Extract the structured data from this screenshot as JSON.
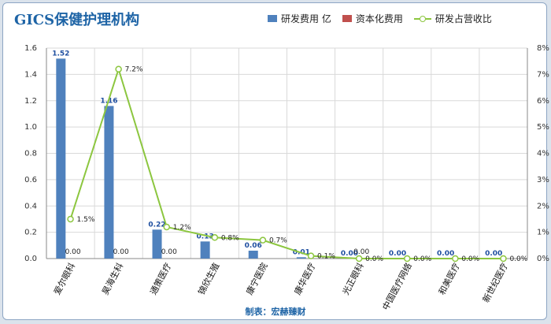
{
  "chart_data": {
    "type": "bar",
    "title": "GICS保健护理机构",
    "categories": [
      "爱尔眼科",
      "昊海生科",
      "通策医疗",
      "锦欣生殖",
      "康宁医院",
      "康华医疗",
      "光正眼科",
      "中国医疗网络",
      "和美医疗",
      "新世纪医疗"
    ],
    "series": [
      {
        "name": "研发费用 亿",
        "axis": "left",
        "kind": "bar",
        "color": "#4f81bd",
        "values": [
          1.52,
          1.16,
          0.22,
          0.13,
          0.06,
          0.01,
          0.0,
          0.0,
          0.0,
          0.0
        ]
      },
      {
        "name": "资本化费用",
        "axis": "left",
        "kind": "bar",
        "color": "#c0504d",
        "values": [
          0.0,
          0.0,
          0.0,
          null,
          null,
          null,
          0.0,
          null,
          null,
          null
        ]
      },
      {
        "name": "研发占营收比",
        "axis": "right",
        "kind": "line",
        "color": "#8cc63f",
        "values": [
          1.5,
          7.2,
          1.2,
          0.8,
          0.7,
          0.1,
          0.0,
          0.0,
          0.0,
          0.0
        ]
      }
    ],
    "bar_labels": [
      "1.52",
      "1.16",
      "0.22",
      "0.13",
      "0.06",
      "0.01",
      "0.00",
      "0.00",
      "0.00",
      "0.00"
    ],
    "cap_labels": [
      "0.00",
      "0.00",
      "0.00",
      "",
      "",
      "",
      "0.00",
      "",
      "",
      ""
    ],
    "pct_labels": [
      "1.5%",
      "7.2%",
      "1.2%",
      "0.8%",
      "0.7%",
      "0.1%",
      "0.0%",
      "0.0%",
      "0.0%",
      "0.0%"
    ],
    "ylim": [
      0,
      1.6
    ],
    "yticks": [
      "0.0",
      "0.2",
      "0.4",
      "0.6",
      "0.8",
      "1.0",
      "1.2",
      "1.4",
      "1.6"
    ],
    "y2lim": [
      0,
      8
    ],
    "y2ticks": [
      "0%",
      "1%",
      "2%",
      "3%",
      "4%",
      "5%",
      "6%",
      "7%",
      "8%"
    ],
    "grid": true,
    "legend_position": "top-right"
  },
  "credit": "制表：宏赫臻财"
}
